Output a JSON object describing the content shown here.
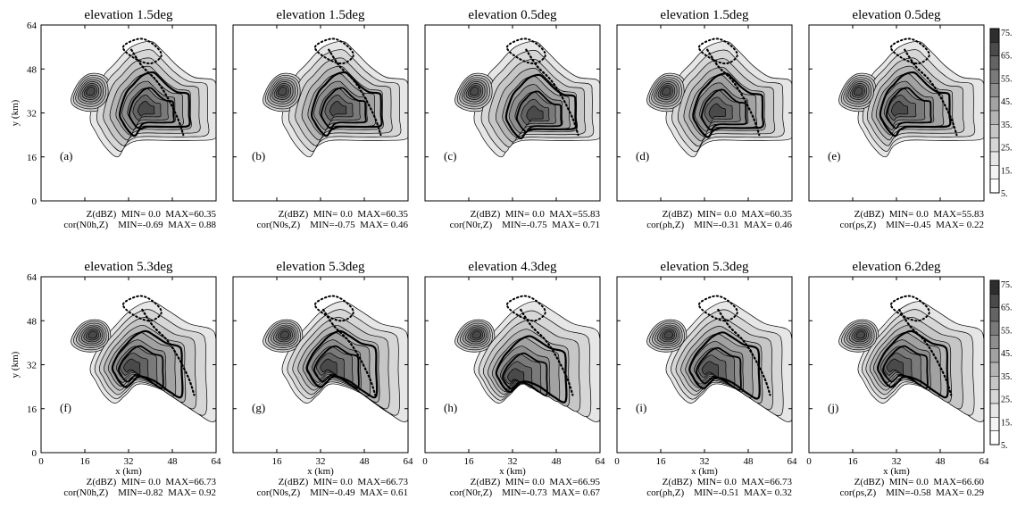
{
  "colors": {
    "background": "#ffffff",
    "axis": "#000000",
    "contour": "#000000",
    "colorbar_levels": [
      "#ffffff",
      "#f4f4f4",
      "#e6e6e6",
      "#d6d6d6",
      "#c6c6c6",
      "#b4b4b4",
      "#a2a2a2",
      "#8e8e8e",
      "#7a7a7a",
      "#646464",
      "#4a4a4a",
      "#2e2e2e"
    ]
  },
  "chart_data": [
    {
      "type": "contour",
      "panel_label": "(a)",
      "title": "elevation   1.5deg",
      "xlabel": "",
      "ylabel": "y (km)",
      "xlim": [
        0,
        64
      ],
      "ylim": [
        0,
        64
      ],
      "xticks": [],
      "yticks": [
        "0",
        "16",
        "32",
        "48",
        "64"
      ],
      "stats": [
        "Z(dBZ)  MIN= 0.0  MAX=60.35",
        "cor(N0h,Z)    MIN=-0.69  MAX= 0.88"
      ],
      "z_min": 0.0,
      "z_max": 60.35,
      "cor_min": -0.69,
      "cor_max": 0.88
    },
    {
      "type": "contour",
      "panel_label": "(b)",
      "title": "elevation   1.5deg",
      "xlabel": "",
      "ylabel": "",
      "xlim": [
        0,
        64
      ],
      "ylim": [
        0,
        64
      ],
      "xticks": [],
      "yticks": [],
      "stats": [
        "Z(dBZ)  MIN= 0.0  MAX=60.35",
        "cor(N0s,Z)    MIN=-0.75  MAX= 0.46"
      ],
      "z_min": 0.0,
      "z_max": 60.35,
      "cor_min": -0.75,
      "cor_max": 0.46
    },
    {
      "type": "contour",
      "panel_label": "(c)",
      "title": "elevation   0.5deg",
      "xlabel": "",
      "ylabel": "",
      "xlim": [
        0,
        64
      ],
      "ylim": [
        0,
        64
      ],
      "xticks": [],
      "yticks": [],
      "stats": [
        "Z(dBZ)  MIN= 0.0  MAX=55.83",
        "cor(N0r,Z)    MIN=-0.75  MAX= 0.71"
      ],
      "z_min": 0.0,
      "z_max": 55.83,
      "cor_min": -0.75,
      "cor_max": 0.71
    },
    {
      "type": "contour",
      "panel_label": "(d)",
      "title": "elevation   1.5deg",
      "xlabel": "",
      "ylabel": "",
      "xlim": [
        0,
        64
      ],
      "ylim": [
        0,
        64
      ],
      "xticks": [],
      "yticks": [],
      "stats": [
        "Z(dBZ)  MIN= 0.0  MAX=60.35",
        "cor(ρh,Z)    MIN=-0.31  MAX= 0.46"
      ],
      "z_min": 0.0,
      "z_max": 60.35,
      "cor_min": -0.31,
      "cor_max": 0.46
    },
    {
      "type": "contour",
      "panel_label": "(e)",
      "title": "elevation   0.5deg",
      "xlabel": "",
      "ylabel": "",
      "xlim": [
        0,
        64
      ],
      "ylim": [
        0,
        64
      ],
      "xticks": [],
      "yticks": [],
      "stats": [
        "Z(dBZ)  MIN= 0.0  MAX=55.83",
        "cor(ρs,Z)    MIN=-0.45  MAX= 0.22"
      ],
      "z_min": 0.0,
      "z_max": 55.83,
      "cor_min": -0.45,
      "cor_max": 0.22
    },
    {
      "type": "contour",
      "panel_label": "(f)",
      "title": "elevation   5.3deg",
      "xlabel": "x (km)",
      "ylabel": "y (km)",
      "xlim": [
        0,
        64
      ],
      "ylim": [
        0,
        64
      ],
      "xticks": [
        "0",
        "16",
        "32",
        "48",
        "64"
      ],
      "yticks": [
        "0",
        "16",
        "32",
        "48",
        "64"
      ],
      "stats": [
        "Z(dBZ)  MIN= 0.0  MAX=66.73",
        "cor(N0h,Z)    MIN=-0.82  MAX= 0.92"
      ],
      "z_min": 0.0,
      "z_max": 66.73,
      "cor_min": -0.82,
      "cor_max": 0.92
    },
    {
      "type": "contour",
      "panel_label": "(g)",
      "title": "elevation   5.3deg",
      "xlabel": "x (km)",
      "ylabel": "",
      "xlim": [
        0,
        64
      ],
      "ylim": [
        0,
        64
      ],
      "xticks": [
        "16",
        "32",
        "48",
        "64"
      ],
      "yticks": [],
      "stats": [
        "Z(dBZ)  MIN= 0.0  MAX=66.73",
        "cor(N0s,Z)    MIN=-0.49  MAX= 0.61"
      ],
      "z_min": 0.0,
      "z_max": 66.73,
      "cor_min": -0.49,
      "cor_max": 0.61
    },
    {
      "type": "contour",
      "panel_label": "(h)",
      "title": "elevation   4.3deg",
      "xlabel": "x (km)",
      "ylabel": "",
      "xlim": [
        0,
        64
      ],
      "ylim": [
        0,
        64
      ],
      "xticks": [
        "0",
        "16",
        "32",
        "48",
        "64"
      ],
      "yticks": [],
      "stats": [
        "Z(dBZ)  MIN= 0.0  MAX=66.95",
        "cor(N0r,Z)    MIN=-0.73  MAX= 0.67"
      ],
      "z_min": 0.0,
      "z_max": 66.95,
      "cor_min": -0.73,
      "cor_max": 0.67
    },
    {
      "type": "contour",
      "panel_label": "(i)",
      "title": "elevation   5.3deg",
      "xlabel": "x (km)",
      "ylabel": "",
      "xlim": [
        0,
        64
      ],
      "ylim": [
        0,
        64
      ],
      "xticks": [
        "0",
        "16",
        "32",
        "48",
        "64"
      ],
      "yticks": [],
      "stats": [
        "Z(dBZ)  MIN= 0.0  MAX=66.73",
        "cor(ρh,Z)    MIN=-0.51  MAX= 0.32"
      ],
      "z_min": 0.0,
      "z_max": 66.73,
      "cor_min": -0.51,
      "cor_max": 0.32
    },
    {
      "type": "contour",
      "panel_label": "(j)",
      "title": "elevation   6.2deg",
      "xlabel": "x (km)",
      "ylabel": "",
      "xlim": [
        0,
        64
      ],
      "ylim": [
        0,
        64
      ],
      "xticks": [
        "0",
        "16",
        "32",
        "48",
        "64"
      ],
      "yticks": [],
      "stats": [
        "Z(dBZ)  MIN= 0.0  MAX=66.60",
        "cor(ρs,Z)    MIN=-0.58  MAX= 0.29"
      ],
      "z_min": 0.0,
      "z_max": 66.6,
      "cor_min": -0.58,
      "cor_max": 0.29
    }
  ],
  "colorbars": [
    {
      "labels": [
        "75.",
        "65.",
        "55.",
        "45.",
        "35.",
        "25.",
        "15.",
        "5."
      ]
    },
    {
      "labels": [
        "75.",
        "65.",
        "55.",
        "45.",
        "35.",
        "25.",
        "15.",
        "5."
      ]
    }
  ]
}
